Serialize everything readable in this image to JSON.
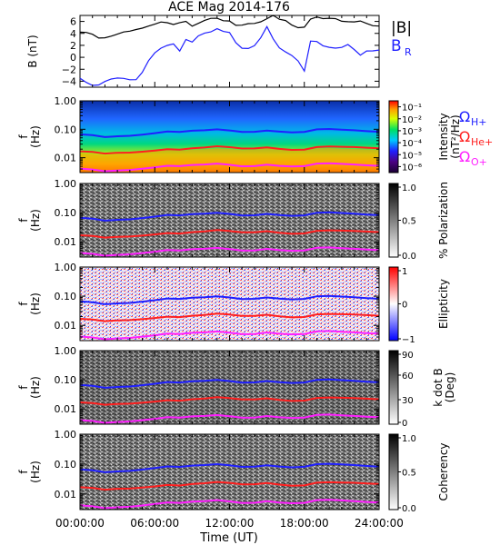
{
  "title": "ACE Mag 2014-176",
  "xlabel": "Time (UT)",
  "x_ticks": [
    "00:00:00",
    "06:00:00",
    "12:00:00",
    "18:00:00",
    "24:00:00"
  ],
  "x_range_hours": [
    0,
    24
  ],
  "colors": {
    "B": "#000000",
    "BR": "#1f1fff",
    "H": "#1f1fff",
    "He": "#ff1f1f",
    "O": "#ff1fff"
  },
  "chart_data": [
    {
      "type": "line",
      "panel": "magnetic-field",
      "ylabel": "B (nT)",
      "ylim": [
        -5,
        7
      ],
      "yticks": [
        "6",
        "4",
        "2",
        "0",
        "−2",
        "−4"
      ],
      "ytick_values": [
        6,
        4,
        2,
        0,
        -2,
        -4
      ],
      "legend": [
        "|B|",
        "B",
        "R"
      ],
      "series": [
        {
          "name": "|B|",
          "color": "#000000",
          "x": [
            0,
            0.5,
            1,
            1.5,
            2,
            2.5,
            3,
            3.5,
            4,
            4.5,
            5,
            5.5,
            6,
            6.5,
            7,
            7.5,
            8,
            8.5,
            9,
            9.5,
            10,
            10.5,
            11,
            11.5,
            12,
            12.5,
            13,
            13.5,
            14,
            14.5,
            15,
            15.5,
            16,
            16.5,
            17,
            17.5,
            18,
            18.5,
            19,
            19.5,
            20,
            20.5,
            21,
            21.5,
            22,
            22.5,
            23,
            23.5,
            24
          ],
          "y": [
            4.2,
            4.0,
            3.7,
            3.2,
            3.4,
            3.7,
            3.9,
            4.1,
            4.2,
            4.6,
            5.0,
            5.4,
            5.6,
            5.8,
            5.6,
            5.4,
            5.9,
            6.2,
            5.3,
            5.6,
            6.0,
            6.4,
            6.6,
            6.3,
            6.2,
            5.3,
            5.2,
            5.5,
            5.7,
            6.1,
            6.6,
            7.0,
            6.2,
            6.0,
            5.4,
            5.1,
            5.2,
            6.4,
            6.6,
            6.3,
            6.5,
            6.6,
            6.2,
            6.0,
            5.8,
            5.9,
            5.6,
            5.4,
            5.4
          ]
        },
        {
          "name": "BR",
          "color": "#1f1fff",
          "x": [
            0,
            0.5,
            1,
            1.5,
            2,
            2.5,
            3,
            3.5,
            4,
            4.5,
            5,
            5.5,
            6,
            6.5,
            7,
            7.5,
            8,
            8.5,
            9,
            9.5,
            10,
            10.5,
            11,
            11.5,
            12,
            12.5,
            13,
            13.5,
            14,
            14.5,
            15,
            15.5,
            16,
            16.5,
            17,
            17.5,
            18,
            18.5,
            19,
            19.5,
            20,
            20.5,
            21,
            21.5,
            22,
            22.5,
            23,
            23.5,
            24
          ],
          "y": [
            -3.8,
            -4.2,
            -4.4,
            -4.3,
            -4.0,
            -3.9,
            -3.8,
            -3.6,
            -3.5,
            -3.4,
            -2.4,
            -0.8,
            0.4,
            1.4,
            2.2,
            2.6,
            1.2,
            2.8,
            2.2,
            3.4,
            4.2,
            4.6,
            5.0,
            4.2,
            3.8,
            2.2,
            1.6,
            1.8,
            2.2,
            3.2,
            4.8,
            2.8,
            1.6,
            1.2,
            0.6,
            -0.6,
            -2.6,
            2.4,
            2.6,
            2.2,
            2.0,
            1.6,
            1.4,
            1.8,
            1.2,
            0.6,
            1.4,
            1.2,
            1.0
          ]
        }
      ]
    },
    {
      "type": "heatmap",
      "panel": "power-spectrum",
      "ylabel": "f (Hz)",
      "yscale": "log",
      "ylim": [
        0.003,
        1.0
      ],
      "yticks": [
        "1.00",
        "0.10",
        "0.01"
      ],
      "ytick_values": [
        1.0,
        0.1,
        0.01
      ],
      "colorbar": {
        "label": "Intensity (nT²/Hz)",
        "ticks": [
          "10⁻¹",
          "10⁻²",
          "10⁻³",
          "10⁻⁴",
          "10⁻⁵",
          "10⁻⁶"
        ],
        "range": [
          1e-06,
          0.1
        ]
      },
      "overlay_labels": [
        "Ω",
        "H+",
        "Ω",
        "He+",
        "Ω",
        "O+"
      ]
    },
    {
      "type": "heatmap",
      "panel": "polarization",
      "ylabel": "f (Hz)",
      "yscale": "log",
      "ylim": [
        0.003,
        1.0
      ],
      "yticks": [
        "1.00",
        "0.10",
        "0.01"
      ],
      "ytick_values": [
        1.0,
        0.1,
        0.01
      ],
      "colorbar": {
        "label": "% Polarization",
        "ticks": [
          "1.0",
          "0.5",
          "0.0"
        ],
        "range": [
          0,
          1
        ]
      }
    },
    {
      "type": "heatmap",
      "panel": "ellipticity",
      "ylabel": "f (Hz)",
      "yscale": "log",
      "ylim": [
        0.003,
        1.0
      ],
      "yticks": [
        "1.00",
        "0.10",
        "0.01"
      ],
      "ytick_values": [
        1.0,
        0.1,
        0.01
      ],
      "colorbar": {
        "label": "Ellipticity",
        "ticks": [
          "1",
          "0",
          "−1"
        ],
        "range": [
          -1,
          1
        ]
      }
    },
    {
      "type": "heatmap",
      "panel": "k-dot-b",
      "ylabel": "f (Hz)",
      "yscale": "log",
      "ylim": [
        0.003,
        1.0
      ],
      "yticks": [
        "1.00",
        "0.10",
        "0.01"
      ],
      "ytick_values": [
        1.0,
        0.1,
        0.01
      ],
      "colorbar": {
        "label": "k dot B (Deg)",
        "ticks": [
          "90",
          "60",
          "30",
          "0"
        ],
        "range": [
          0,
          90
        ]
      }
    },
    {
      "type": "heatmap",
      "panel": "coherency",
      "ylabel": "f (Hz)",
      "yscale": "log",
      "ylim": [
        0.003,
        1.0
      ],
      "yticks": [
        "1.00",
        "0.10",
        "0.01"
      ],
      "ytick_values": [
        1.0,
        0.1,
        0.01
      ],
      "colorbar": {
        "label": "Coherency",
        "ticks": [
          "1.0",
          "0.5",
          "0.0"
        ],
        "range": [
          0,
          1
        ]
      }
    }
  ],
  "gyrofrequencies": {
    "x": [
      0,
      1,
      2,
      3,
      4,
      5,
      6,
      7,
      8,
      9,
      10,
      11,
      12,
      13,
      14,
      15,
      16,
      17,
      18,
      19,
      20,
      21,
      22,
      23,
      24
    ],
    "H_hz": [
      0.064,
      0.061,
      0.054,
      0.059,
      0.062,
      0.068,
      0.075,
      0.083,
      0.078,
      0.085,
      0.088,
      0.096,
      0.09,
      0.082,
      0.085,
      0.095,
      0.086,
      0.079,
      0.08,
      0.096,
      0.097,
      0.093,
      0.09,
      0.086,
      0.084
    ],
    "He_hz": [
      0.016,
      0.0152,
      0.0135,
      0.0148,
      0.0155,
      0.017,
      0.0188,
      0.0208,
      0.0195,
      0.0212,
      0.022,
      0.024,
      0.0225,
      0.0205,
      0.0212,
      0.0238,
      0.0215,
      0.0198,
      0.02,
      0.024,
      0.0242,
      0.0232,
      0.0225,
      0.0215,
      0.021
    ],
    "O_hz": [
      0.004,
      0.0038,
      0.0034,
      0.0037,
      0.0039,
      0.0043,
      0.0047,
      0.0052,
      0.0049,
      0.0053,
      0.0055,
      0.006,
      0.0056,
      0.0051,
      0.0053,
      0.006,
      0.0054,
      0.005,
      0.005,
      0.006,
      0.0061,
      0.0058,
      0.0056,
      0.0054,
      0.0053
    ]
  }
}
